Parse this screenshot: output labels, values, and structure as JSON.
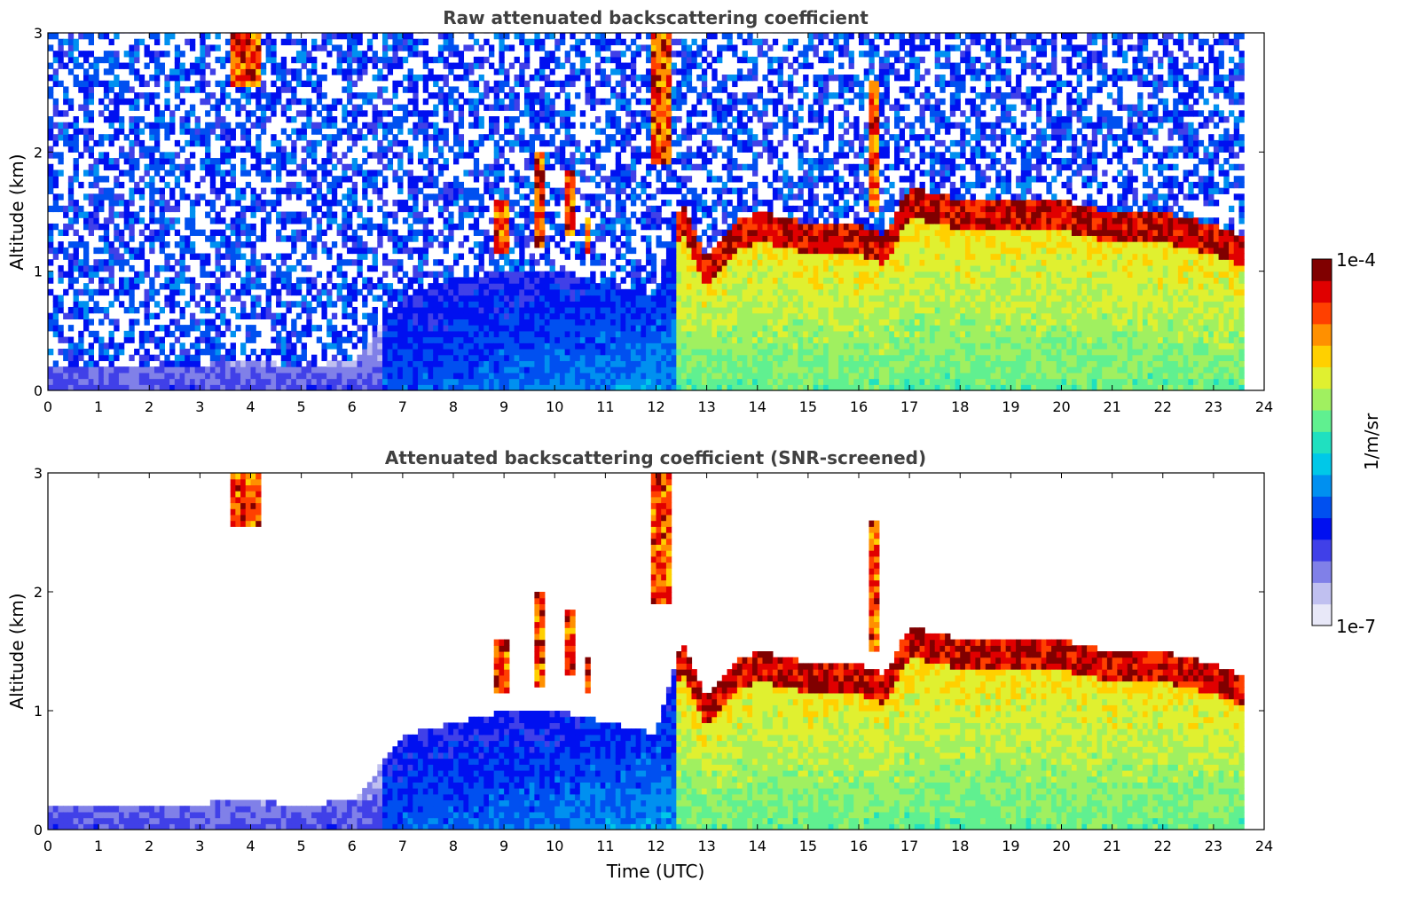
{
  "chart_data": [
    {
      "type": "heatmap",
      "title": "Raw attenuated backscattering coefficient",
      "xlabel": "",
      "ylabel": "Altitude (km)",
      "xlim": [
        0,
        24
      ],
      "ylim": [
        0,
        3
      ],
      "x_ticks": [
        "0",
        "1",
        "2",
        "3",
        "4",
        "5",
        "6",
        "7",
        "8",
        "9",
        "10",
        "11",
        "12",
        "13",
        "14",
        "15",
        "16",
        "17",
        "18",
        "19",
        "20",
        "21",
        "22",
        "23",
        "24"
      ],
      "y_ticks": [
        "0",
        "1",
        "2",
        "3"
      ],
      "data_end_hour": 23.6,
      "noise_above_boundary": true,
      "boundary_layer_top_km": [
        [
          0,
          0.2
        ],
        [
          1,
          0.2
        ],
        [
          2,
          0.2
        ],
        [
          3,
          0.22
        ],
        [
          4,
          0.25
        ],
        [
          5,
          0.2
        ],
        [
          6,
          0.25
        ],
        [
          6.5,
          0.5
        ],
        [
          7,
          0.8
        ],
        [
          8,
          0.9
        ],
        [
          9,
          1.0
        ],
        [
          10,
          1.0
        ],
        [
          11,
          0.9
        ],
        [
          12,
          0.8
        ],
        [
          12.5,
          1.6
        ],
        [
          13,
          1.1
        ],
        [
          13.5,
          1.4
        ],
        [
          14,
          1.5
        ],
        [
          15,
          1.4
        ],
        [
          16,
          1.4
        ],
        [
          16.5,
          1.3
        ],
        [
          17,
          1.7
        ],
        [
          18,
          1.6
        ],
        [
          19,
          1.6
        ],
        [
          20,
          1.6
        ],
        [
          21,
          1.5
        ],
        [
          22,
          1.5
        ],
        [
          23,
          1.4
        ],
        [
          23.6,
          1.3
        ]
      ],
      "cloud_features": [
        {
          "t": 3.9,
          "base_km": 2.55,
          "top_km": 3.0,
          "width_h": 0.55
        },
        {
          "t": 8.95,
          "base_km": 1.15,
          "top_km": 1.6,
          "width_h": 0.25
        },
        {
          "t": 9.7,
          "base_km": 1.2,
          "top_km": 2.0,
          "width_h": 0.25
        },
        {
          "t": 10.3,
          "base_km": 1.3,
          "top_km": 1.85,
          "width_h": 0.2
        },
        {
          "t": 10.65,
          "base_km": 1.15,
          "top_km": 1.45,
          "width_h": 0.15
        },
        {
          "t": 12.1,
          "base_km": 1.9,
          "top_km": 3.0,
          "width_h": 0.35
        },
        {
          "t": 16.3,
          "base_km": 1.5,
          "top_km": 2.6,
          "width_h": 0.15
        }
      ]
    },
    {
      "type": "heatmap",
      "title": "Attenuated backscattering coefficient (SNR-screened)",
      "xlabel": "Time (UTC)",
      "ylabel": "Altitude (km)",
      "xlim": [
        0,
        24
      ],
      "ylim": [
        0,
        3
      ],
      "x_ticks": [
        "0",
        "1",
        "2",
        "3",
        "4",
        "5",
        "6",
        "7",
        "8",
        "9",
        "10",
        "11",
        "12",
        "13",
        "14",
        "15",
        "16",
        "17",
        "18",
        "19",
        "20",
        "21",
        "22",
        "23",
        "24"
      ],
      "y_ticks": [
        "0",
        "1",
        "2",
        "3"
      ],
      "data_end_hour": 23.6,
      "noise_above_boundary": false
    }
  ],
  "colorbar": {
    "label": "1/m/sr",
    "max_label": "1e-4",
    "min_label": "1e-7",
    "colors": [
      "#e8e8f8",
      "#c0c0f0",
      "#8080e8",
      "#4040e8",
      "#0010f0",
      "#0050f0",
      "#0090f0",
      "#00c8e8",
      "#20e0c0",
      "#60f090",
      "#a0f060",
      "#e0f030",
      "#ffd000",
      "#ff9000",
      "#ff4000",
      "#e00000",
      "#800000"
    ]
  }
}
